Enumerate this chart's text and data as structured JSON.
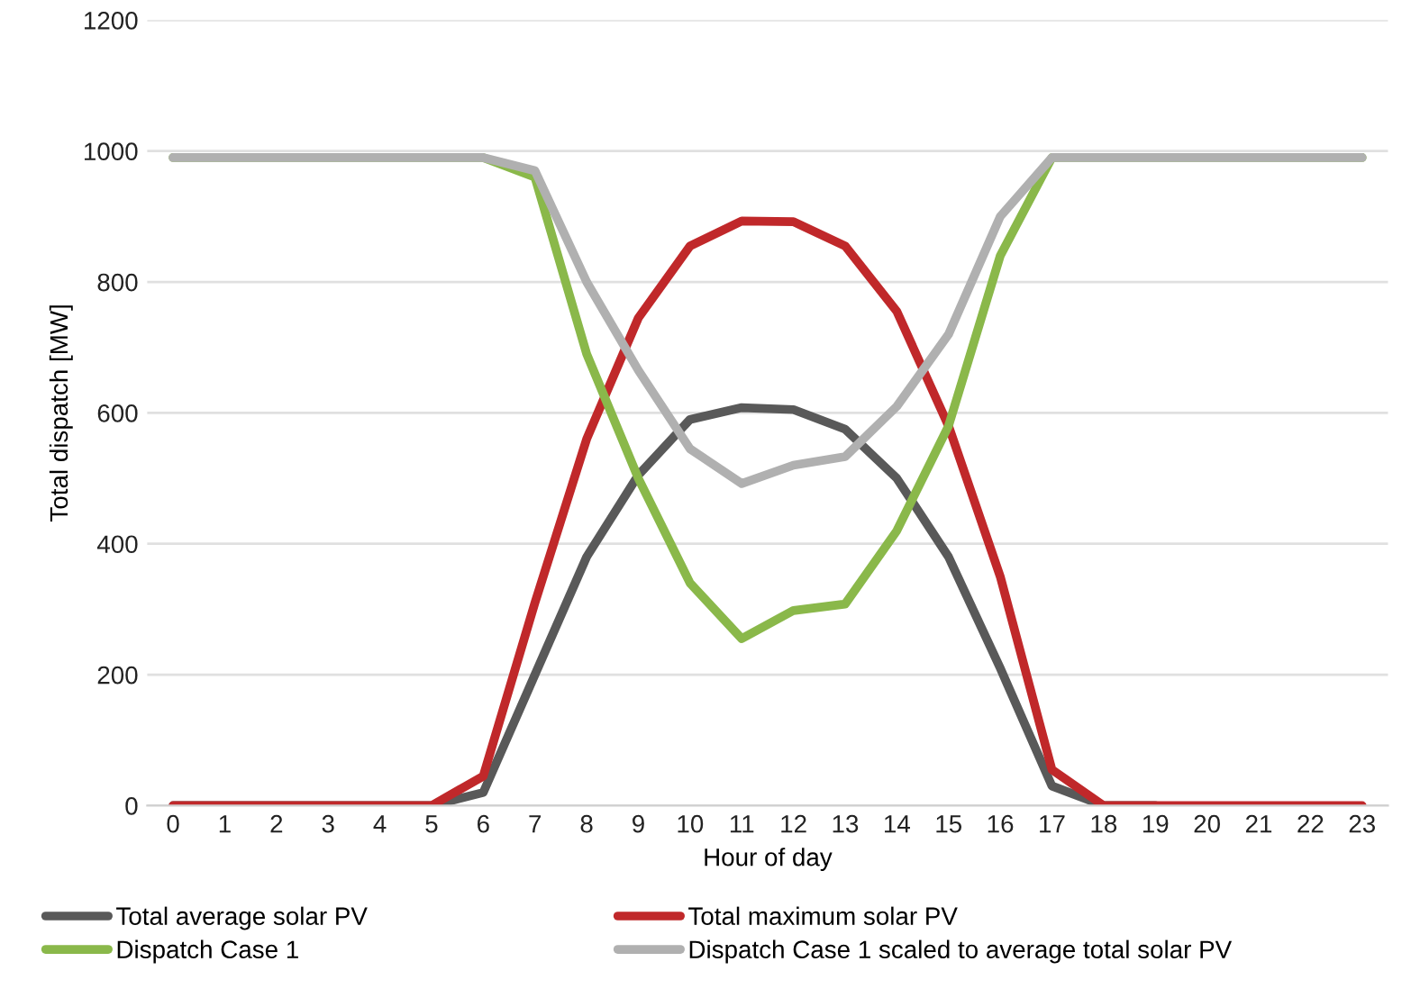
{
  "chart_data": {
    "type": "line",
    "xlabel": "Hour of day",
    "ylabel": "Total dispatch [MW]",
    "categories": [
      "0",
      "1",
      "2",
      "3",
      "4",
      "5",
      "6",
      "7",
      "8",
      "9",
      "10",
      "11",
      "12",
      "13",
      "14",
      "15",
      "16",
      "17",
      "18",
      "19",
      "20",
      "21",
      "22",
      "23"
    ],
    "ylim": [
      0,
      1200
    ],
    "yticks": [
      0,
      200,
      400,
      600,
      800,
      1000,
      1200
    ],
    "grid": "y",
    "legend": "bottom",
    "marker": "none",
    "line_style": "solid",
    "series": [
      {
        "name": "Total average solar PV",
        "color": "#595959",
        "values": [
          0,
          0,
          0,
          0,
          0,
          0,
          20,
          200,
          380,
          505,
          590,
          608,
          605,
          575,
          500,
          380,
          210,
          30,
          0,
          0,
          null,
          null,
          null,
          null
        ]
      },
      {
        "name": "Total maximum solar PV",
        "color": "#c0282a",
        "values": [
          0,
          0,
          0,
          0,
          0,
          0,
          45,
          310,
          560,
          745,
          855,
          893,
          892,
          855,
          755,
          580,
          350,
          55,
          0,
          0,
          0,
          0,
          0,
          0
        ]
      },
      {
        "name": "Dispatch Case 1",
        "color": "#8ab84a",
        "values": [
          990,
          990,
          990,
          990,
          990,
          990,
          990,
          960,
          690,
          500,
          340,
          255,
          298,
          308,
          420,
          580,
          840,
          990,
          990,
          990,
          990,
          990,
          990,
          990
        ]
      },
      {
        "name": "Dispatch Case 1 scaled to average total solar PV",
        "color": "#b0b0b0",
        "values": [
          990,
          990,
          990,
          990,
          990,
          990,
          990,
          970,
          800,
          665,
          545,
          492,
          520,
          533,
          610,
          720,
          900,
          990,
          990,
          990,
          990,
          990,
          990,
          990
        ]
      }
    ]
  }
}
